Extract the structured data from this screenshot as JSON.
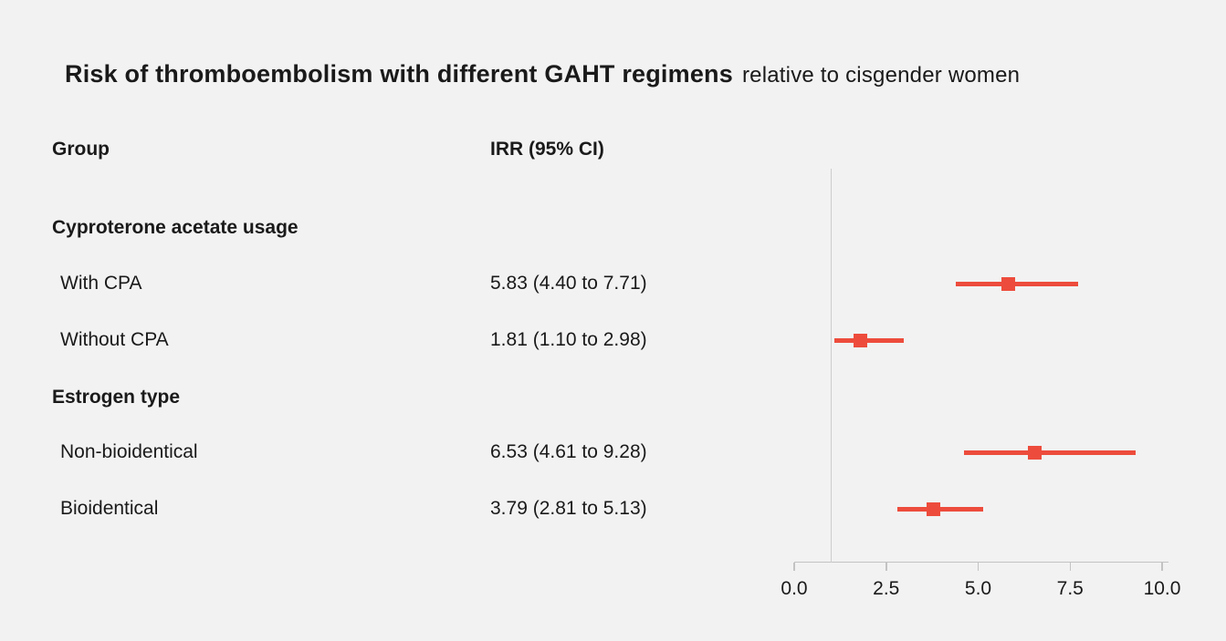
{
  "title": {
    "main": "Risk of thromboembolism with different GAHT regimens",
    "suffix": "relative to cisgender women"
  },
  "columns": {
    "group": "Group",
    "irr": "IRR (95% CI)"
  },
  "chart_data": {
    "type": "forest",
    "title": "Risk of thromboembolism with different GAHT regimens relative to cisgender women",
    "xlabel": "",
    "xlim": [
      0,
      10
    ],
    "x_ticks": [
      0,
      2.5,
      5,
      7.5,
      10
    ],
    "tick_labels": [
      "0.0",
      "2.5",
      "5.0",
      "7.5",
      "10.0"
    ],
    "reference_line": 1,
    "marker_color": "#ed4c3c",
    "grid": false,
    "groups": [
      {
        "heading": "Cyproterone acetate usage",
        "rows": [
          {
            "label": "With CPA",
            "irr_text": "5.83 (4.40 to 7.71)",
            "estimate": 5.83,
            "ci_low": 4.4,
            "ci_high": 7.71
          },
          {
            "label": "Without CPA",
            "irr_text": "1.81 (1.10 to 2.98)",
            "estimate": 1.81,
            "ci_low": 1.1,
            "ci_high": 2.98
          }
        ]
      },
      {
        "heading": "Estrogen type",
        "rows": [
          {
            "label": "Non-bioidentical",
            "irr_text": "6.53 (4.61 to 9.28)",
            "estimate": 6.53,
            "ci_low": 4.61,
            "ci_high": 9.28
          },
          {
            "label": "Bioidentical",
            "irr_text": "3.79 (2.81 to 5.13)",
            "estimate": 3.79,
            "ci_low": 2.81,
            "ci_high": 5.13
          }
        ]
      }
    ]
  }
}
